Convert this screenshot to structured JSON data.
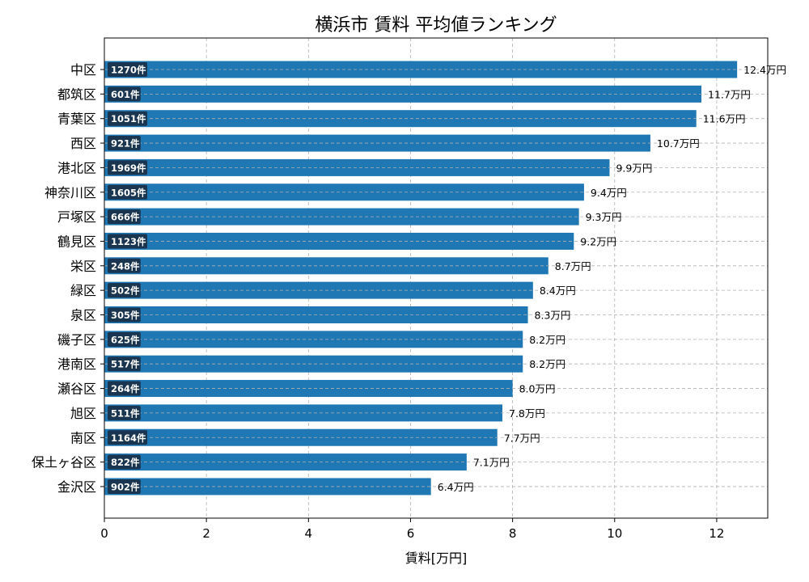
{
  "chart_data": {
    "type": "bar",
    "orientation": "horizontal",
    "title": "横浜市 賃料 平均値ランキング",
    "xlabel": "賃料[万円]",
    "ylabel": "",
    "xlim": [
      0,
      13
    ],
    "xticks": [
      0,
      2,
      4,
      6,
      8,
      10,
      12
    ],
    "grid": true,
    "bar_color": "#1f77b4",
    "count_badge_color": "#1a3550",
    "value_suffix": "万円",
    "count_suffix": "件",
    "categories": [
      "中区",
      "都筑区",
      "青葉区",
      "西区",
      "港北区",
      "神奈川区",
      "戸塚区",
      "鶴見区",
      "栄区",
      "緑区",
      "泉区",
      "磯子区",
      "港南区",
      "瀬谷区",
      "旭区",
      "南区",
      "保土ヶ谷区",
      "金沢区"
    ],
    "values": [
      12.4,
      11.7,
      11.6,
      10.7,
      9.9,
      9.4,
      9.3,
      9.2,
      8.7,
      8.4,
      8.3,
      8.2,
      8.2,
      8.0,
      7.8,
      7.7,
      7.1,
      6.4
    ],
    "counts": [
      1270,
      601,
      1051,
      921,
      1969,
      1605,
      666,
      1123,
      248,
      502,
      305,
      625,
      517,
      264,
      511,
      1164,
      822,
      902
    ]
  }
}
